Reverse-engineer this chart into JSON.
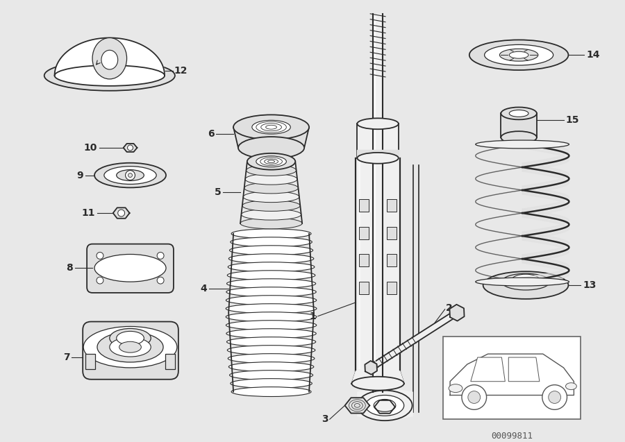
{
  "bg_color": "#ffffff",
  "line_color": "#2a2a2a",
  "fill_color": "#e0e0e0",
  "fill_light": "#f0f0f0",
  "part_number": "00099811",
  "fig_bg": "#e8e8e8"
}
